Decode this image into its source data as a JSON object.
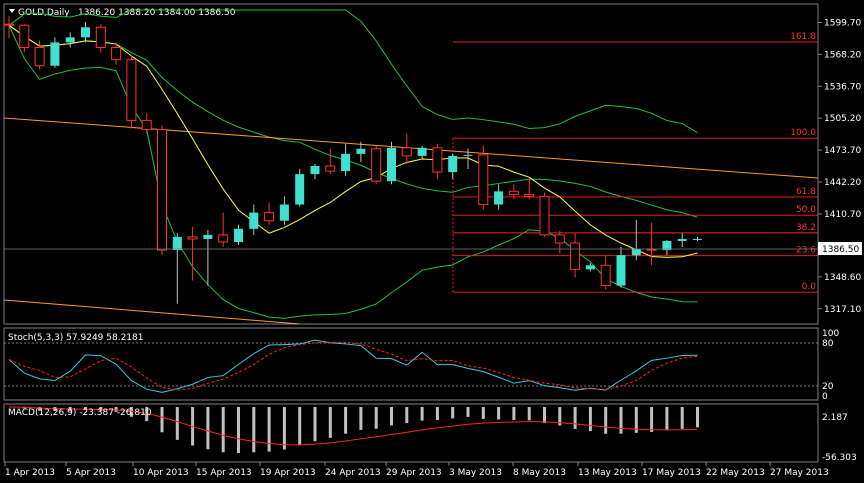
{
  "header": {
    "symbol_label": "GOLD,Daily",
    "ohlc": "1386.20 1388.20 1384.00 1386.50"
  },
  "price_axis": {
    "ticks": [
      "1599.70",
      "1568.20",
      "1536.70",
      "1505.20",
      "1473.70",
      "1442.20",
      "1410.70",
      "1379.20",
      "1348.60",
      "1317.10"
    ],
    "current_price": "1386.50",
    "range": [
      1306.0,
      1612.0
    ]
  },
  "fibonacci": {
    "levels": [
      {
        "label": "161.8",
        "price": 1580.5
      },
      {
        "label": "100.0",
        "price": 1485.5
      },
      {
        "label": "61.8",
        "price": 1427.5
      },
      {
        "label": "50.0",
        "price": 1409.5
      },
      {
        "label": "38.2",
        "price": 1392.0
      },
      {
        "label": "23.6",
        "price": 1369.5
      },
      {
        "label": "0.0",
        "price": 1333.5
      }
    ]
  },
  "stoch": {
    "label": "Stoch(5,3,3) 57.9249 58.2181",
    "ticks": [
      "100",
      "80",
      "20",
      "0"
    ]
  },
  "macd": {
    "label": "MACD(12,26,9) -23.387 -26.810",
    "tick": "2.187",
    "bottom_tick": "-56.303"
  },
  "time_axis": {
    "labels": [
      "1 Apr 2013",
      "5 Apr 2013",
      "10 Apr 2013",
      "15 Apr 2013",
      "19 Apr 2013",
      "24 Apr 2013",
      "29 Apr 2013",
      "3 May 2013",
      "8 May 2013",
      "13 May 2013",
      "17 May 2013",
      "22 May 2013",
      "27 May 2013"
    ]
  },
  "colors": {
    "bull": "#40e0d0",
    "bear": "#000000",
    "wick": "#c0c0c0",
    "bear_outline": "#ff3030",
    "ma_yellow": "#ffff40",
    "bollinger": "#20c040",
    "trend": "#ff9933",
    "fib": "#ff2020",
    "stoch_main": "#40c8e0",
    "stoch_signal": "#ff2020",
    "macd_hist": "#c0c0c0",
    "macd_signal": "#ff2020"
  },
  "chart_data": {
    "type": "candlestick",
    "ohlc": [
      [
        1598,
        1606,
        1584,
        1597
      ],
      [
        1597,
        1598,
        1570,
        1575
      ],
      [
        1575,
        1582,
        1553,
        1557
      ],
      [
        1557,
        1585,
        1555,
        1580
      ],
      [
        1580,
        1590,
        1575,
        1585
      ],
      [
        1585,
        1600,
        1580,
        1595
      ],
      [
        1595,
        1598,
        1570,
        1575
      ],
      [
        1575,
        1580,
        1558,
        1563
      ],
      [
        1563,
        1567,
        1495,
        1503
      ],
      [
        1503,
        1510,
        1490,
        1494
      ],
      [
        1494,
        1498,
        1370,
        1375
      ],
      [
        1375,
        1392,
        1322,
        1388
      ],
      [
        1388,
        1398,
        1345,
        1386
      ],
      [
        1386,
        1395,
        1340,
        1390
      ],
      [
        1390,
        1412,
        1378,
        1383
      ],
      [
        1383,
        1400,
        1380,
        1396
      ],
      [
        1396,
        1420,
        1390,
        1412
      ],
      [
        1412,
        1422,
        1400,
        1404
      ],
      [
        1404,
        1428,
        1400,
        1420
      ],
      [
        1420,
        1455,
        1418,
        1450
      ],
      [
        1450,
        1460,
        1445,
        1458
      ],
      [
        1458,
        1475,
        1450,
        1453
      ],
      [
        1453,
        1480,
        1448,
        1470
      ],
      [
        1470,
        1482,
        1462,
        1475
      ],
      [
        1475,
        1478,
        1440,
        1443
      ],
      [
        1443,
        1482,
        1440,
        1476
      ],
      [
        1476,
        1490,
        1460,
        1468
      ],
      [
        1468,
        1478,
        1465,
        1476
      ],
      [
        1476,
        1480,
        1445,
        1452
      ],
      [
        1452,
        1470,
        1445,
        1468
      ],
      [
        1468,
        1475,
        1455,
        1469
      ],
      [
        1469,
        1478,
        1415,
        1420
      ],
      [
        1420,
        1440,
        1415,
        1433
      ],
      [
        1433,
        1440,
        1425,
        1430
      ],
      [
        1430,
        1446,
        1425,
        1428
      ],
      [
        1428,
        1432,
        1388,
        1390
      ],
      [
        1390,
        1394,
        1372,
        1382
      ],
      [
        1382,
        1392,
        1348,
        1356
      ],
      [
        1356,
        1362,
        1354,
        1360
      ],
      [
        1360,
        1370,
        1336,
        1340
      ],
      [
        1340,
        1378,
        1338,
        1370
      ],
      [
        1370,
        1405,
        1365,
        1376
      ],
      [
        1376,
        1402,
        1360,
        1375
      ],
      [
        1375,
        1385,
        1370,
        1384
      ],
      [
        1384,
        1392,
        1378,
        1386
      ],
      [
        1386,
        1388,
        1384,
        1386
      ]
    ]
  }
}
